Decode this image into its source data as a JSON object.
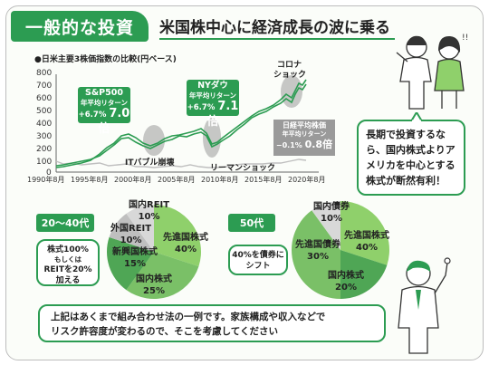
{
  "header": {
    "tag": "一般的な投資",
    "headline": "米国株中心に経済成長の波に乗る"
  },
  "chart": {
    "caption": "●日米主要3株価指数の比較(円ベース)",
    "y_ticks": [
      "800",
      "700",
      "600",
      "500",
      "400",
      "300",
      "200",
      "100",
      "0"
    ],
    "x_ticks": [
      "1990年8月",
      "1995年8月",
      "2000年8月",
      "2005年8月",
      "2010年8月",
      "2015年8月",
      "2020年8月"
    ],
    "sp500": {
      "name": "S&P500",
      "sub": "年平均リターン",
      "ret": "+6.7%",
      "mult": "7.0倍"
    },
    "nydow": {
      "name": "NYダウ",
      "sub": "年平均リターン",
      "ret": "+6.7%",
      "mult": "7.1倍"
    },
    "nikkei": {
      "name": "日経平均株価",
      "sub": "年平均リターン",
      "ret": "−0.1%",
      "mult": "0.8倍"
    },
    "events": {
      "it_bubble": "ITバブル崩壊",
      "lehman": "リーマンショック",
      "corona_1": "コロナ",
      "corona_2": "ショック"
    }
  },
  "speech": "長期で投資するなら、国内株式よりアメリカを中心とする株式が断然有利！",
  "portfolio_a": {
    "age": "20〜40代",
    "note_l1": "株式100%",
    "note_l2": "もしくは",
    "note_l3": "REITを20%",
    "note_l4": "加える",
    "labels": {
      "reit_name": "国内REIT",
      "reit_pct": "10%",
      "foreign_reit_name": "外国REIT",
      "foreign_reit_pct": "10%",
      "emerging_name": "新興国株式",
      "emerging_pct": "15%",
      "developed_name": "先進国株式",
      "developed_pct": "40%",
      "domestic_name": "国内株式",
      "domestic_pct": "25%"
    }
  },
  "portfolio_b": {
    "age": "50代",
    "note_l1": "40%を債券に",
    "note_l2": "シフト",
    "labels": {
      "dbond_name": "国内債券",
      "dbond_pct": "10%",
      "fbond_name": "先進国債券",
      "fbond_pct": "30%",
      "developed_name": "先進国株式",
      "developed_pct": "40%",
      "domestic_name": "国内株式",
      "domestic_pct": "20%"
    }
  },
  "footer": {
    "line1": "上記はあくまで組み合わせ法の一例です。家族構成や収入などで",
    "line2": "リスク許容度が変わるので、そこを考慮してください"
  },
  "colors": {
    "accent": "#2c9c52",
    "light_green": "#8fd06b",
    "mid_green": "#5bb35e",
    "grey": "#9a9a9a"
  }
}
